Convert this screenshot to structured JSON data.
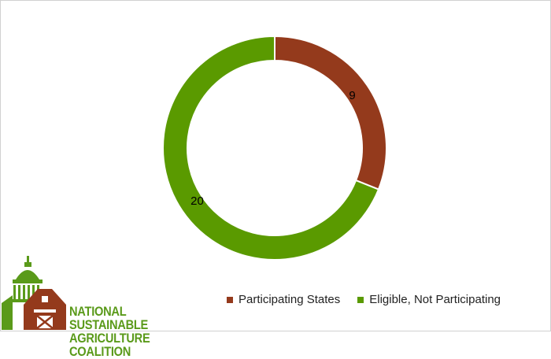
{
  "chart_data": {
    "type": "pie",
    "subtype": "donut",
    "categories": [
      "Participating States",
      "Eligible, Not Participating"
    ],
    "values": [
      9,
      20
    ],
    "colors": [
      "#943a1c",
      "#5a9a00"
    ],
    "data_labels": [
      "9",
      "20"
    ],
    "legend_position": "bottom-right",
    "title": ""
  },
  "logo": {
    "line1": "NATIONAL SUSTAINABLE",
    "line2": "AGRICULTURE COALITION",
    "colors": {
      "dome": "#5a9a1a",
      "barn": "#943a1c"
    }
  }
}
